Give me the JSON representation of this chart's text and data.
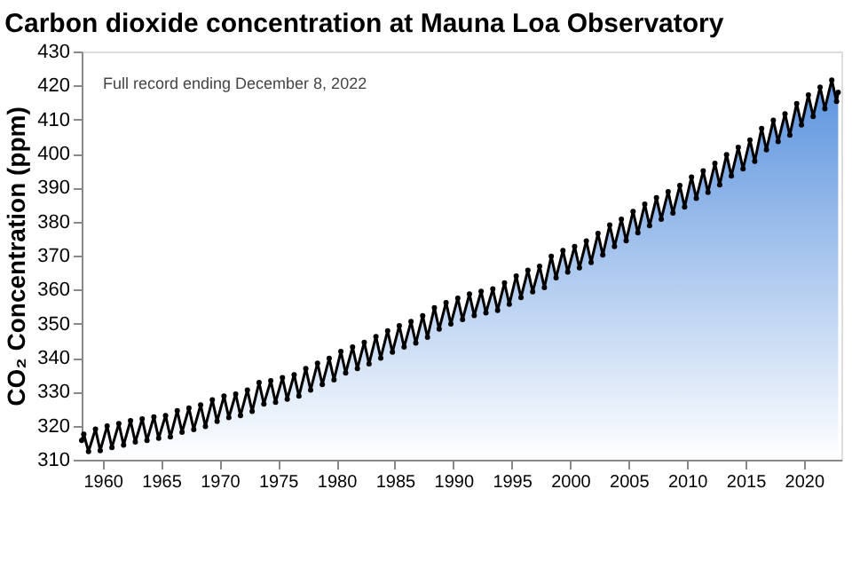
{
  "chart_data": {
    "type": "area",
    "title": "Carbon dioxide concentration at Mauna Loa Observatory",
    "ylabel": "CO₂ Concentration (ppm)",
    "annotations": [
      "Full record ending December 8, 2022"
    ],
    "x": [
      1958.2,
      1958.38,
      1958.79,
      1959.38,
      1959.79,
      1960.38,
      1960.79,
      1961.38,
      1961.79,
      1962.38,
      1962.79,
      1963.38,
      1963.79,
      1964.38,
      1964.79,
      1965.38,
      1965.79,
      1966.38,
      1966.79,
      1967.38,
      1967.79,
      1968.38,
      1968.79,
      1969.38,
      1969.79,
      1970.38,
      1970.79,
      1971.38,
      1971.79,
      1972.38,
      1972.79,
      1973.38,
      1973.79,
      1974.38,
      1974.79,
      1975.38,
      1975.79,
      1976.38,
      1976.79,
      1977.38,
      1977.79,
      1978.38,
      1978.79,
      1979.38,
      1979.79,
      1980.38,
      1980.79,
      1981.38,
      1981.79,
      1982.38,
      1982.79,
      1983.38,
      1983.79,
      1984.38,
      1984.79,
      1985.38,
      1985.79,
      1986.38,
      1986.79,
      1987.38,
      1987.79,
      1988.38,
      1988.79,
      1989.38,
      1989.79,
      1990.38,
      1990.79,
      1991.38,
      1991.79,
      1992.38,
      1992.79,
      1993.38,
      1993.79,
      1994.38,
      1994.79,
      1995.38,
      1995.79,
      1996.38,
      1996.79,
      1997.38,
      1997.79,
      1998.38,
      1998.79,
      1999.38,
      1999.79,
      2000.38,
      2000.79,
      2001.38,
      2001.79,
      2002.38,
      2002.79,
      2003.38,
      2003.79,
      2004.38,
      2004.79,
      2005.38,
      2005.79,
      2006.38,
      2006.79,
      2007.38,
      2007.79,
      2008.38,
      2008.79,
      2009.38,
      2009.79,
      2010.38,
      2010.79,
      2011.38,
      2011.79,
      2012.38,
      2012.79,
      2013.38,
      2013.79,
      2014.38,
      2014.79,
      2015.38,
      2015.79,
      2016.38,
      2016.79,
      2017.38,
      2017.79,
      2018.38,
      2018.79,
      2019.38,
      2019.79,
      2020.38,
      2020.79,
      2021.38,
      2021.79,
      2022.38,
      2022.79,
      2022.93
    ],
    "series": [
      {
        "color": "#5b93de",
        "marker": "circle",
        "values": [
          315.7,
          317.5,
          312.4,
          319.0,
          312.7,
          319.9,
          313.6,
          320.6,
          314.3,
          321.5,
          315.2,
          322.0,
          315.7,
          322.6,
          316.3,
          323.0,
          316.7,
          324.4,
          318.1,
          325.2,
          318.9,
          326.1,
          319.8,
          327.6,
          321.3,
          328.7,
          322.4,
          329.3,
          323.0,
          330.5,
          324.2,
          332.7,
          326.4,
          333.2,
          326.9,
          334.1,
          327.8,
          335.0,
          328.7,
          336.8,
          330.5,
          338.4,
          332.1,
          339.8,
          333.5,
          341.8,
          335.5,
          343.1,
          336.8,
          344.5,
          338.2,
          346.2,
          339.9,
          347.9,
          341.6,
          349.4,
          343.1,
          350.6,
          344.3,
          352.3,
          346.0,
          354.7,
          348.4,
          356.2,
          349.9,
          357.5,
          351.2,
          358.7,
          352.4,
          359.5,
          353.2,
          360.2,
          353.9,
          362.0,
          355.7,
          364.0,
          357.7,
          365.7,
          359.4,
          366.9,
          360.6,
          369.8,
          363.5,
          371.5,
          365.2,
          372.7,
          366.4,
          374.3,
          368.0,
          376.5,
          370.2,
          379.0,
          372.7,
          380.7,
          374.4,
          383.0,
          376.7,
          385.1,
          378.8,
          387.0,
          380.7,
          388.8,
          382.5,
          390.6,
          384.3,
          393.1,
          386.8,
          394.9,
          388.6,
          397.1,
          390.8,
          399.7,
          393.4,
          401.8,
          395.5,
          404.0,
          397.7,
          407.4,
          401.1,
          409.8,
          403.5,
          411.7,
          405.4,
          414.7,
          408.4,
          417.2,
          410.9,
          419.5,
          413.2,
          421.6,
          415.3,
          418.0
        ]
      }
    ],
    "xlim": [
      1958.2,
      2023.2
    ],
    "xticks": [
      1960,
      1965,
      1970,
      1975,
      1980,
      1985,
      1990,
      1995,
      2000,
      2005,
      2010,
      2015,
      2020
    ],
    "ylim": [
      310,
      430
    ],
    "yticks": [
      310,
      320,
      330,
      340,
      350,
      360,
      370,
      380,
      390,
      400,
      410,
      420,
      430
    ],
    "grid": false
  }
}
